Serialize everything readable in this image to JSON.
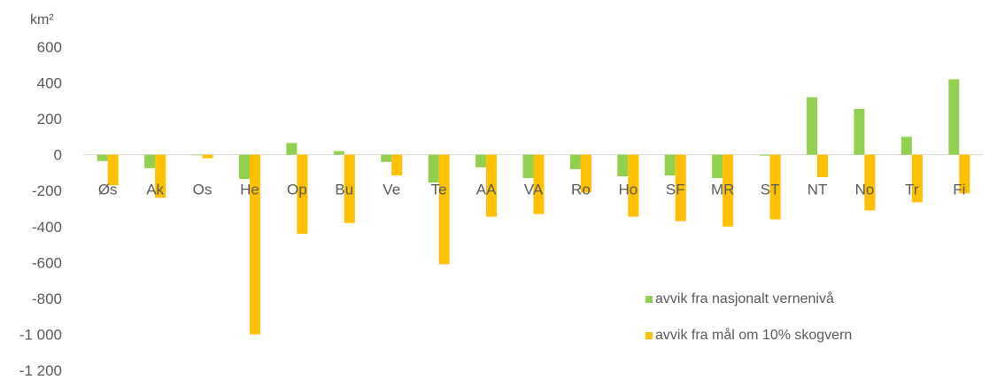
{
  "chart_data": {
    "type": "bar",
    "ylabel": "km²",
    "ylim": [
      -1200,
      600
    ],
    "yticks": [
      600,
      400,
      200,
      0,
      -200,
      -400,
      -600,
      -800,
      -1000,
      -1200
    ],
    "ytick_labels": [
      "600",
      "400",
      "200",
      "0",
      "-200",
      "-400",
      "-600",
      "-800",
      "-1 000",
      "-1 200"
    ],
    "grid": false,
    "legend_position": "bottom-right",
    "categories": [
      "Øs",
      "Ak",
      "Os",
      "He",
      "Op",
      "Bu",
      "Ve",
      "Te",
      "AA",
      "VA",
      "Ro",
      "Ho",
      "SF",
      "MR",
      "ST",
      "NT",
      "No",
      "Tr",
      "Fi"
    ],
    "series": [
      {
        "name": "avvik fra nasjonalt vernenivå",
        "color": "#92d050",
        "values": [
          -35,
          -75,
          -3,
          -135,
          65,
          20,
          -40,
          -155,
          -70,
          -130,
          -80,
          -120,
          -115,
          -130,
          -5,
          320,
          255,
          100,
          420
        ]
      },
      {
        "name": "avvik fra mål om 10% skogvern",
        "color": "#ffc000",
        "values": [
          -170,
          -240,
          -20,
          -1000,
          -440,
          -380,
          -115,
          -610,
          -345,
          -330,
          -210,
          -345,
          -370,
          -400,
          -360,
          -125,
          -310,
          -265,
          -215
        ]
      }
    ]
  }
}
